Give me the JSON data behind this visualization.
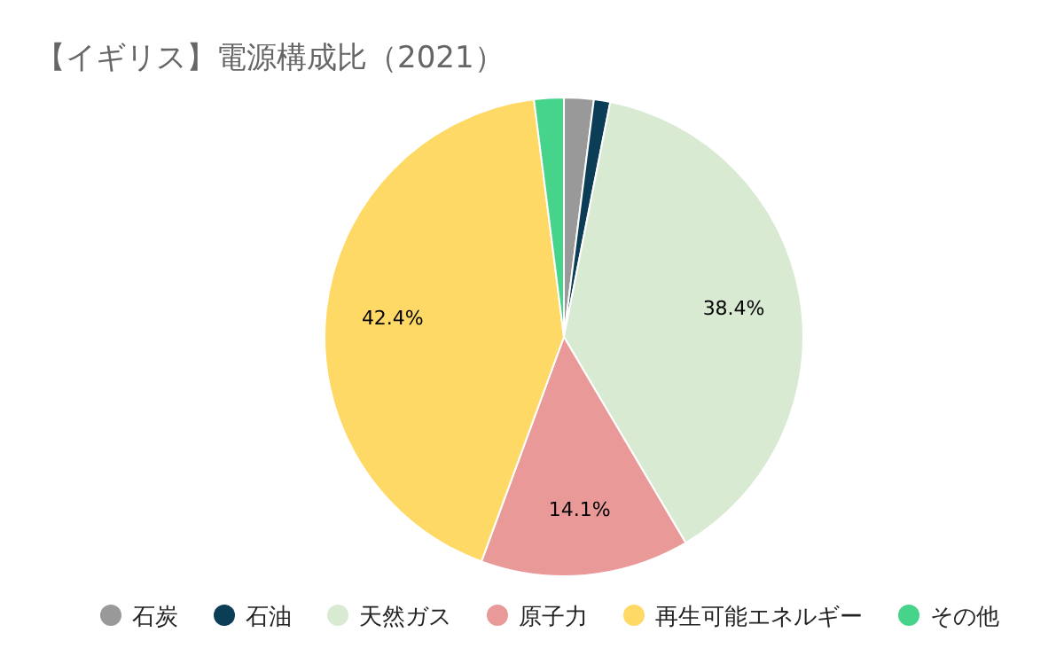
{
  "chart_data": {
    "type": "pie",
    "title": "【イギリス】電源構成比（2021）",
    "categories": [
      "石炭",
      "石油",
      "天然ガス",
      "原子力",
      "再生可能エネルギー",
      "その他"
    ],
    "values": [
      2.0,
      1.1,
      38.4,
      14.1,
      42.4,
      2.0
    ],
    "colors": [
      "#999999",
      "#0b3d56",
      "#d9ead3",
      "#ea9999",
      "#ffd966",
      "#45d48a"
    ],
    "value_labels": [
      null,
      null,
      "38.4%",
      "14.1%",
      "42.4%",
      null
    ],
    "legend": "bottom"
  }
}
